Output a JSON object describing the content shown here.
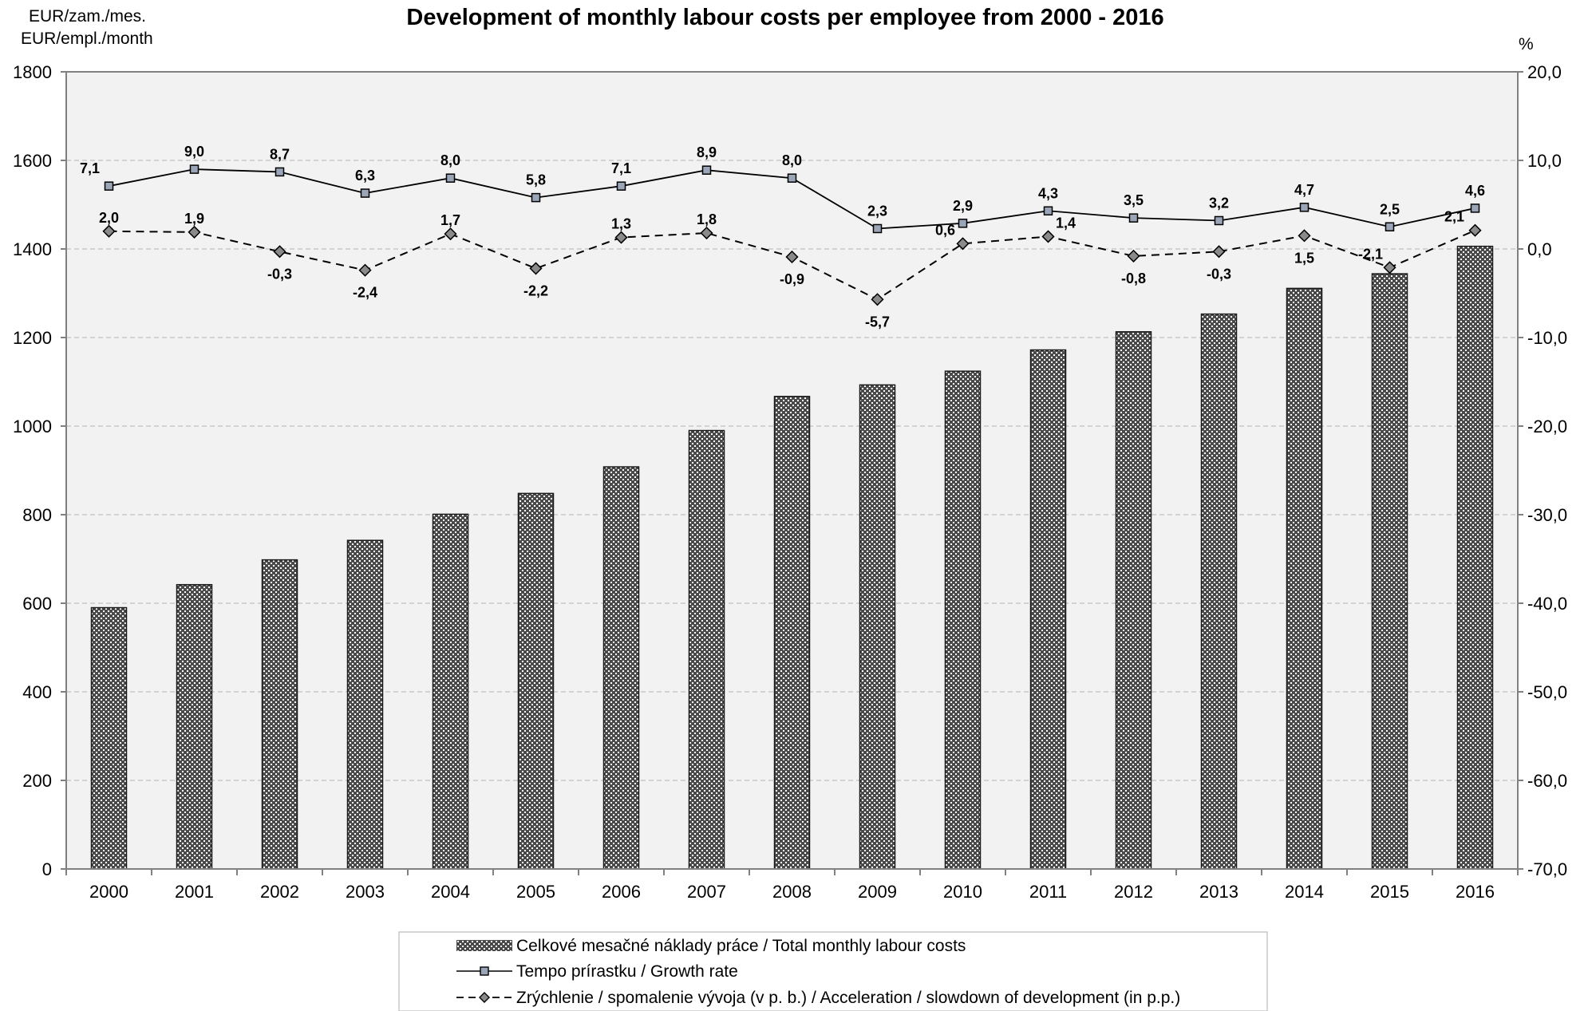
{
  "colors": {
    "plot_background": "#f2f2f2",
    "bar_fill": "#4a4a4a",
    "bar_dots": "#ffffff",
    "line": "#000000",
    "marker_square": "#9aa6b8",
    "marker_diamond": "#8a8a8a",
    "gridline": "#c8c8c8"
  },
  "chart_data": {
    "type": "bar",
    "title": "Development of monthly labour costs per employee from 2000 - 2016",
    "y_left_unit": [
      "EUR/zam./mes.",
      "EUR/empl./month"
    ],
    "y_right_unit": "%",
    "ylim_left": [
      0,
      1800
    ],
    "ylim_right": [
      -70,
      20
    ],
    "yticks_left": [
      "0",
      "200",
      "400",
      "600",
      "800",
      "1000",
      "1200",
      "1400",
      "1600",
      "1800"
    ],
    "yticks_right": [
      "-70,0",
      "-60,0",
      "-50,0",
      "-40,0",
      "-30,0",
      "-20,0",
      "-10,0",
      "0,0",
      "10,0",
      "20,0"
    ],
    "grid": "horizontal dashed",
    "legend_position": "bottom-center",
    "categories": [
      "2000",
      "2001",
      "2002",
      "2003",
      "2004",
      "2005",
      "2006",
      "2007",
      "2008",
      "2009",
      "2010",
      "2011",
      "2012",
      "2013",
      "2014",
      "2015",
      "2016"
    ],
    "series": [
      {
        "name": "Celkové mesačné náklady práce / Total monthly labour costs",
        "type": "bar",
        "axis": "left",
        "values": [
          590,
          642,
          698,
          742,
          801,
          848,
          908,
          990,
          1067,
          1093,
          1124,
          1172,
          1213,
          1253,
          1311,
          1344,
          1406
        ]
      },
      {
        "name": "Tempo prírastku / Growth rate",
        "type": "line",
        "axis": "right",
        "marker": "square",
        "values": [
          7.1,
          9.0,
          8.7,
          6.3,
          8.0,
          5.8,
          7.1,
          8.9,
          8.0,
          2.3,
          2.9,
          4.3,
          3.5,
          3.2,
          4.7,
          2.5,
          4.6
        ],
        "labels": [
          "7,1",
          "9,0",
          "8,7",
          "6,3",
          "8,0",
          "5,8",
          "7,1",
          "8,9",
          "8,0",
          "2,3",
          "2,9",
          "4,3",
          "3,5",
          "3,2",
          "4,7",
          "2,5",
          "4,6"
        ]
      },
      {
        "name": "Zrýchlenie / spomalenie vývoja (v p. b.) / Acceleration / slowdown of development (in p.p.)",
        "type": "line",
        "axis": "right",
        "marker": "diamond",
        "dashed": true,
        "values": [
          2.0,
          1.9,
          -0.3,
          -2.4,
          1.7,
          -2.2,
          1.3,
          1.8,
          -0.9,
          -5.7,
          0.6,
          1.4,
          -0.8,
          -0.3,
          1.5,
          -2.1,
          2.1
        ],
        "labels": [
          "2,0",
          "1,9",
          "-0,3",
          "-2,4",
          "1,7",
          "-2,2",
          "1,3",
          "1,8",
          "-0,9",
          "-5,7",
          "0,6",
          "1,4",
          "-0,8",
          "-0,3",
          "1,5",
          "-2,1",
          "2,1"
        ]
      }
    ]
  }
}
